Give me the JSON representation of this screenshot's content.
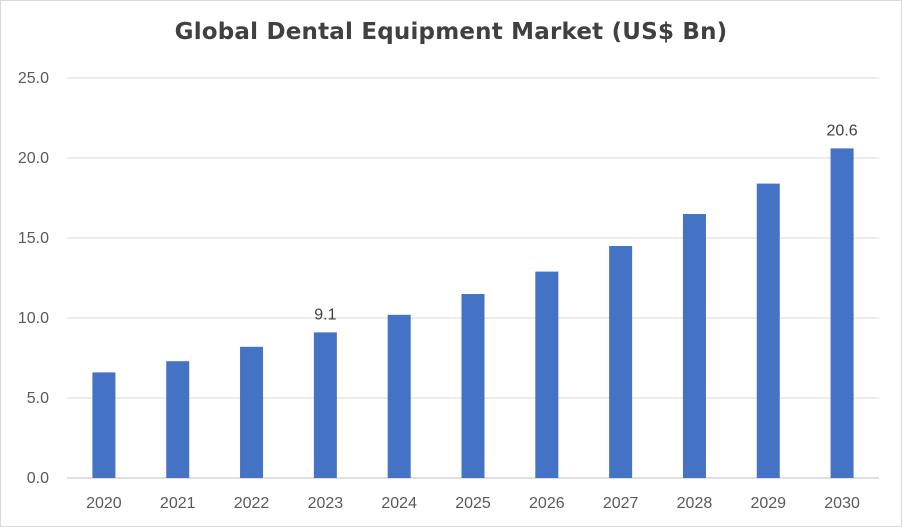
{
  "chart_data": {
    "type": "bar",
    "title": "Global Dental Equipment Market (US$ Bn)",
    "xlabel": "",
    "ylabel": "",
    "categories": [
      "2020",
      "2021",
      "2022",
      "2023",
      "2024",
      "2025",
      "2026",
      "2027",
      "2028",
      "2029",
      "2030"
    ],
    "values": [
      6.6,
      7.3,
      8.2,
      9.1,
      10.2,
      11.5,
      12.9,
      14.5,
      16.5,
      18.4,
      20.6
    ],
    "data_labels": [
      {
        "category": "2023",
        "text": "9.1"
      },
      {
        "category": "2030",
        "text": "20.6"
      }
    ],
    "ylim": [
      0,
      25
    ],
    "yticks": [
      "0.0",
      "5.0",
      "10.0",
      "15.0",
      "20.0",
      "25.0"
    ],
    "grid": true,
    "legend": "none",
    "colors": {
      "bar": "#4472C4",
      "grid": "#d9d9d9",
      "axis": "#bfbfbf"
    }
  }
}
